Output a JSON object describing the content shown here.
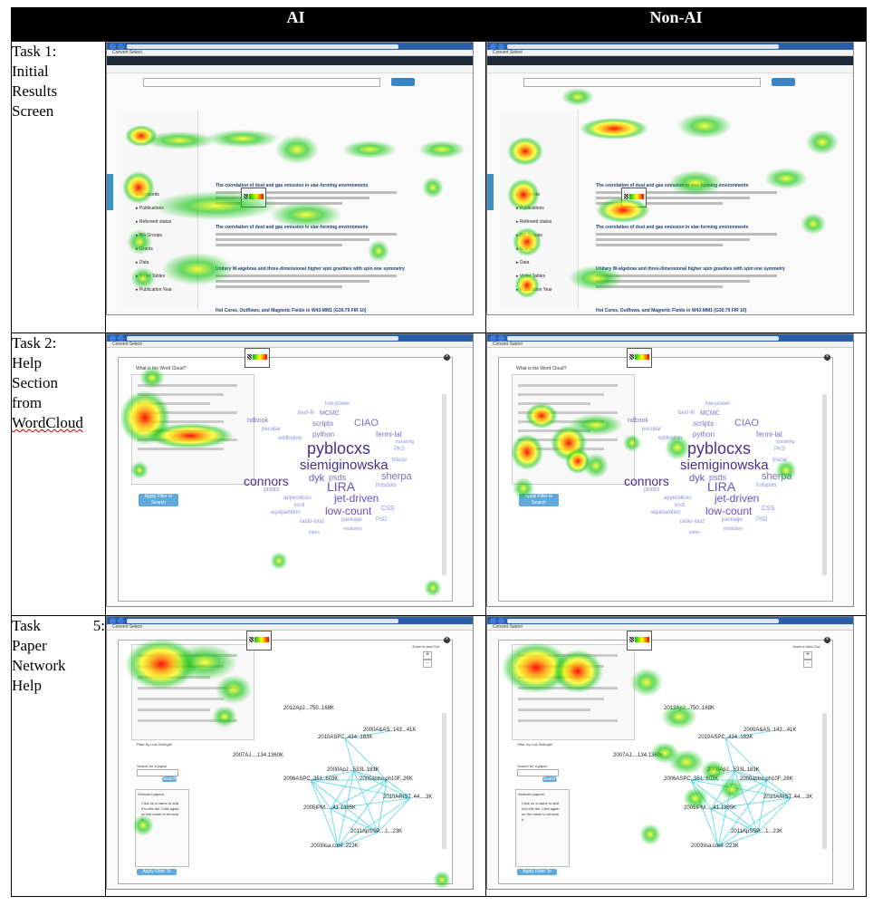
{
  "table": {
    "col_headers": [
      "AI",
      "Non-AI"
    ],
    "rows": [
      {
        "label_line1": "Task 1:",
        "label_line2": "Initial",
        "label_line3": "Results",
        "label_line4": "Screen"
      },
      {
        "label_line1": "Task 2:",
        "label_line2": "Help",
        "label_line3": "Section",
        "label_line4": "from",
        "label_line5": "WordCloud"
      },
      {
        "label_line1a": "Task",
        "label_line1b": "5:",
        "label_line2": "Paper",
        "label_line3": "Network",
        "label_line4": "Help"
      }
    ]
  },
  "heatmap_colors": {
    "low": "#00c000",
    "mid": "#ffff00",
    "high": "#ff0000"
  },
  "task1": {
    "toolbar": "Convert  Select",
    "results": [
      {
        "title": "The correlation of dust and gas emission in star-forming environments"
      },
      {
        "title": "The correlation of dust and gas emission in star-forming environments"
      },
      {
        "title": "Unitary W-algebras and three-dimensional higher spin gravities with spin one symmetry"
      },
      {
        "title": "Hot Cores, Outflows, and Magnetic Fields in W43-MM1 (G30.79 FIR 10)"
      }
    ],
    "sidebar": [
      "Keywords",
      "Publications",
      "Refereed status",
      "Bib Groups",
      "Grants",
      "Data",
      "Vizier Tables",
      "Publication Year"
    ]
  },
  "task2": {
    "help_title": "What is the Word Cloud?",
    "apply_label": "Apply Filter to Search",
    "words": [
      {
        "text": "pyblocxs",
        "size": 18,
        "color": "#4a2f8f"
      },
      {
        "text": "siemiginowska",
        "size": 15,
        "color": "#4a2f8f"
      },
      {
        "text": "connors",
        "size": 14,
        "color": "#4a2f8f"
      },
      {
        "text": "LIRA",
        "size": 14,
        "color": "#6a4fbf"
      },
      {
        "text": "jet-driven",
        "size": 12,
        "color": "#6a4fbf"
      },
      {
        "text": "low-count",
        "size": 12,
        "color": "#6a4fbf"
      },
      {
        "text": "sherpa",
        "size": 11,
        "color": "#7a6fcf"
      },
      {
        "text": "CIAO",
        "size": 11,
        "color": "#7a6fcf"
      },
      {
        "text": "dyk",
        "size": 11,
        "color": "#6a4fbf"
      },
      {
        "text": "psds",
        "size": 9,
        "color": "#7a6fcf"
      },
      {
        "text": "python",
        "size": 8,
        "color": "#7a6fcf"
      },
      {
        "text": "scripts",
        "size": 8,
        "color": "#7a6fcf"
      },
      {
        "text": "fermi-lat",
        "size": 8,
        "color": "#7a6fcf"
      },
      {
        "text": "MCMC",
        "size": 7,
        "color": "#7a6fcf"
      },
      {
        "text": "ndbook",
        "size": 7,
        "color": "#7a6fcf"
      },
      {
        "text": "priors",
        "size": 7,
        "color": "#8a8fe0"
      },
      {
        "text": "CSS",
        "size": 7,
        "color": "#8a8fe0"
      },
      {
        "text": "package",
        "size": 6,
        "color": "#8a8fe0"
      },
      {
        "text": "radio-loud",
        "size": 6,
        "color": "#8a8fe0"
      },
      {
        "text": "equipartition",
        "size": 6,
        "color": "#8a8fe0"
      },
      {
        "text": "PSD",
        "size": 6,
        "color": "#8a8fe0"
      },
      {
        "text": "hotspots",
        "size": 6,
        "color": "#8a8fe0"
      },
      {
        "text": "appendices",
        "size": 6,
        "color": "#8a8fe0"
      },
      {
        "text": "low-power",
        "size": 6,
        "color": "#8a8fe0"
      },
      {
        "text": "best-fit",
        "size": 6,
        "color": "#8a8fe0"
      },
      {
        "text": "peculiar",
        "size": 6,
        "color": "#8a8fe0"
      },
      {
        "text": "eddington",
        "size": 6,
        "color": "#8a8fe0"
      },
      {
        "text": "blazar",
        "size": 6,
        "color": "#8a8fe0"
      },
      {
        "text": "PKS",
        "size": 6,
        "color": "#8a8fe0"
      },
      {
        "text": "knot",
        "size": 6,
        "color": "#8a8fe0"
      },
      {
        "text": "institution",
        "size": 5,
        "color": "#8a8fe0"
      },
      {
        "text": "lobes",
        "size": 5,
        "color": "#8a8fe0"
      },
      {
        "text": "transiting",
        "size": 5,
        "color": "#8a8fe0"
      }
    ]
  },
  "task5": {
    "zoom_label": "Zoom in and Out",
    "filter_label": "Filter by Link Strength",
    "search_label": "Search for a paper",
    "search_btn": "Search",
    "selected_label": "Selected papers:",
    "selected_help": "Click on a name to add it to this list. Click again on the name to remove it.",
    "apply_label": "Apply Filter To Search",
    "papers": [
      {
        "id": "2012ApJ...750..168K"
      },
      {
        "id": "2000A&AS..143...41K"
      },
      {
        "id": "2010ASPC..434..183K"
      },
      {
        "id": "2007AJ....134.1360K"
      },
      {
        "id": "2000ApJ...533L.183K"
      },
      {
        "id": "2006ASPC..351..603K"
      },
      {
        "id": "2000astro.ph10F..26K"
      },
      {
        "id": "2010ARIST..44....3K"
      },
      {
        "id": "2005IPM.....41.1395K"
      },
      {
        "id": "2011ApSSP....1...23K"
      },
      {
        "id": "2003lisa.conf..223K"
      }
    ]
  }
}
